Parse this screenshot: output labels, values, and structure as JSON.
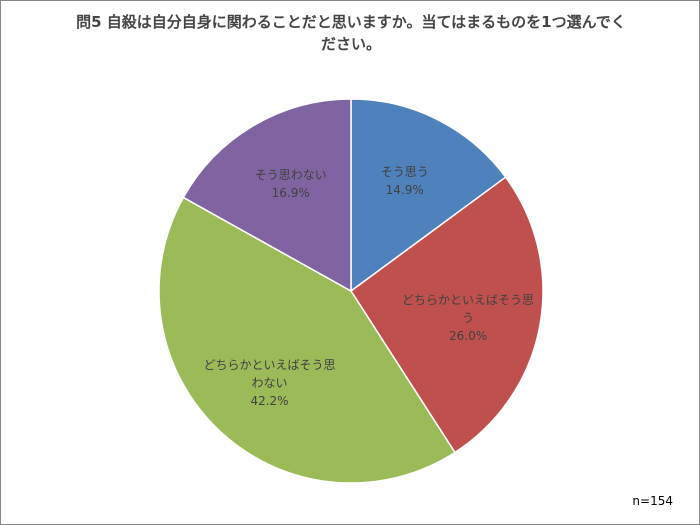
{
  "chart_data": {
    "type": "pie",
    "title": "問5 自殺は自分自身に関わることだと思いますか。当てはまるものを1つ選んでください。",
    "categories": [
      "そう思う",
      "どちらかといえばそう思う",
      "どちらかといえばそう思わない",
      "そう思わない"
    ],
    "values": [
      14.9,
      26.0,
      42.2,
      16.9
    ],
    "value_labels": [
      "14.9%",
      "26.0%",
      "42.2%",
      "16.9%"
    ],
    "colors": [
      "#4f81bd",
      "#c0504d",
      "#9bbb59",
      "#8064a2"
    ],
    "annotation": "n=154"
  }
}
